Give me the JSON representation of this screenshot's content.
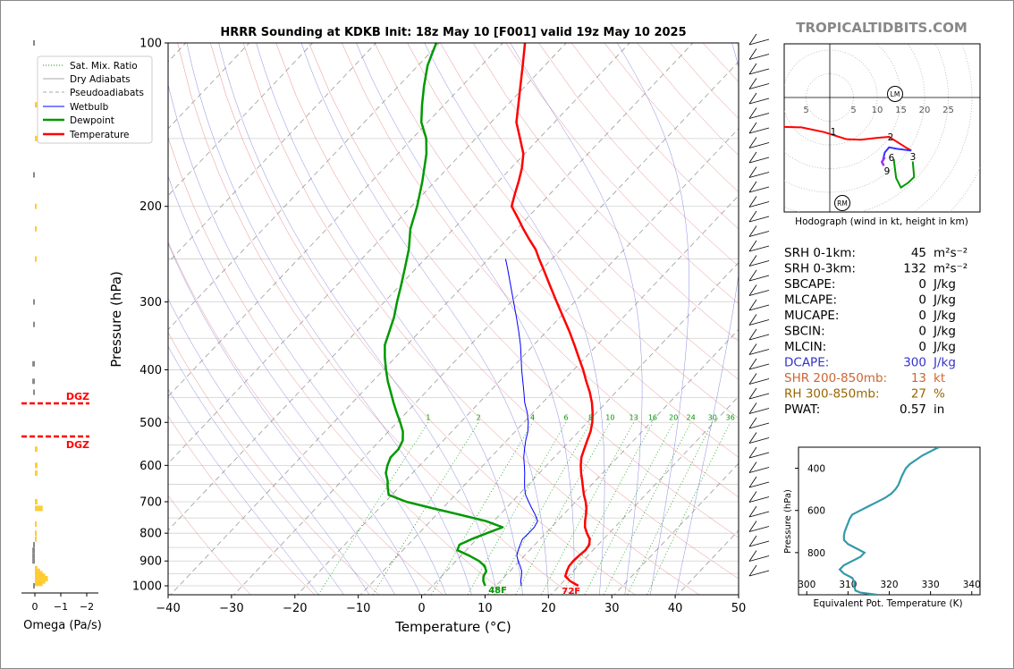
{
  "title": "HRRR Sounding at KDKB Init: 18z May 10 [F001] valid 19z May 10 2025",
  "brand": "TROPICALTIDBITS.COM",
  "colors": {
    "temperature": "#ff0000",
    "dewpoint": "#009900",
    "wetbulb": "#0000ff",
    "dcape": "#3333cc",
    "shr": "#cc6633",
    "rh": "#996600",
    "theta_e": "#3399aa",
    "omega_pos": "#ffcc33",
    "omega_neg": "#888888",
    "brand": "#888888",
    "dgz": "#ff0000"
  },
  "chart_data": [
    {
      "type": "line",
      "name": "skew-t",
      "title": "HRRR Sounding at KDKB Init: 18z May 10 [F001] valid 19z May 10 2025",
      "xlabel": "Temperature (°C)",
      "ylabel": "Pressure (hPa)",
      "xlim": [
        -40,
        50
      ],
      "ylim": [
        1050,
        100
      ],
      "y_scale": "log",
      "x_ticks": [
        "−40",
        "−30",
        "−20",
        "−10",
        "0",
        "10",
        "20",
        "30",
        "40",
        "50"
      ],
      "y_ticks": [
        "100",
        "200",
        "300",
        "400",
        "500",
        "600",
        "700",
        "800",
        "900",
        "1000"
      ],
      "legend": {
        "position": "top-left",
        "entries": [
          "Sat. Mix. Ratio",
          "Dry Adiabats",
          "Pseudoadiabats",
          "Wetbulb",
          "Dewpoint",
          "Temperature"
        ]
      },
      "mixing_ratio_labels": [
        "1",
        "2",
        "4",
        "6",
        "8",
        "10",
        "13",
        "16",
        "20",
        "24",
        "30",
        "36"
      ],
      "surface_labels": {
        "temperature": "72F",
        "dewpoint": "48F"
      },
      "series": [
        {
          "name": "Temperature",
          "points": [
            [
              1000,
              23.0
            ],
            [
              980,
              21.0
            ],
            [
              960,
              19.5
            ],
            [
              940,
              19.0
            ],
            [
              920,
              18.6
            ],
            [
              900,
              18.5
            ],
            [
              880,
              18.6
            ],
            [
              860,
              18.8
            ],
            [
              840,
              18.6
            ],
            [
              820,
              17.8
            ],
            [
              800,
              16.5
            ],
            [
              780,
              15.3
            ],
            [
              760,
              14.4
            ],
            [
              740,
              13.6
            ],
            [
              720,
              12.7
            ],
            [
              700,
              11.6
            ],
            [
              680,
              10.3
            ],
            [
              660,
              9.1
            ],
            [
              640,
              7.9
            ],
            [
              620,
              6.6
            ],
            [
              600,
              5.4
            ],
            [
              580,
              4.3
            ],
            [
              560,
              3.5
            ],
            [
              540,
              2.7
            ],
            [
              520,
              1.9
            ],
            [
              500,
              0.8
            ],
            [
              480,
              -0.6
            ],
            [
              460,
              -2.2
            ],
            [
              440,
              -4.1
            ],
            [
              420,
              -6.3
            ],
            [
              400,
              -8.5
            ],
            [
              380,
              -11.0
            ],
            [
              360,
              -13.6
            ],
            [
              340,
              -16.4
            ],
            [
              320,
              -19.5
            ],
            [
              300,
              -22.8
            ],
            [
              280,
              -26.3
            ],
            [
              260,
              -30.0
            ],
            [
              250,
              -32.0
            ],
            [
              240,
              -34.0
            ],
            [
              230,
              -36.5
            ],
            [
              220,
              -39.0
            ],
            [
              210,
              -41.5
            ],
            [
              200,
              -44.2
            ],
            [
              190,
              -45.5
            ],
            [
              180,
              -46.8
            ],
            [
              170,
              -48.3
            ],
            [
              160,
              -50.2
            ],
            [
              150,
              -53.0
            ],
            [
              140,
              -56.0
            ],
            [
              130,
              -58.3
            ],
            [
              120,
              -60.8
            ],
            [
              110,
              -63.5
            ],
            [
              100,
              -66.5
            ]
          ]
        },
        {
          "name": "Dewpoint",
          "points": [
            [
              1000,
              8.3
            ],
            [
              980,
              7.3
            ],
            [
              960,
              6.6
            ],
            [
              940,
              6.3
            ],
            [
              920,
              5.3
            ],
            [
              900,
              3.6
            ],
            [
              880,
              1.3
            ],
            [
              860,
              -1.4
            ],
            [
              840,
              -1.9
            ],
            [
              820,
              -0.8
            ],
            [
              800,
              0.7
            ],
            [
              780,
              2.3
            ],
            [
              760,
              -1.2
            ],
            [
              740,
              -6.2
            ],
            [
              720,
              -11.5
            ],
            [
              700,
              -16.7
            ],
            [
              680,
              -20.5
            ],
            [
              660,
              -21.7
            ],
            [
              640,
              -22.8
            ],
            [
              620,
              -24.2
            ],
            [
              600,
              -25.1
            ],
            [
              580,
              -25.8
            ],
            [
              560,
              -25.8
            ],
            [
              540,
              -26.4
            ],
            [
              520,
              -27.7
            ],
            [
              500,
              -29.5
            ],
            [
              480,
              -31.5
            ],
            [
              460,
              -33.5
            ],
            [
              440,
              -35.5
            ],
            [
              420,
              -37.6
            ],
            [
              400,
              -39.6
            ],
            [
              380,
              -41.6
            ],
            [
              360,
              -43.5
            ],
            [
              340,
              -44.8
            ],
            [
              320,
              -46.2
            ],
            [
              300,
              -48.0
            ],
            [
              280,
              -49.8
            ],
            [
              260,
              -51.8
            ],
            [
              240,
              -54.0
            ],
            [
              220,
              -56.8
            ],
            [
              200,
              -59.1
            ],
            [
              180,
              -62.0
            ],
            [
              160,
              -65.5
            ],
            [
              150,
              -67.8
            ],
            [
              140,
              -71.0
            ],
            [
              130,
              -73.5
            ],
            [
              120,
              -76.0
            ],
            [
              110,
              -78.5
            ],
            [
              100,
              -80.5
            ]
          ]
        },
        {
          "name": "Wetbulb",
          "points": [
            [
              1000,
              14.0
            ],
            [
              980,
              13.2
            ],
            [
              960,
              12.6
            ],
            [
              940,
              11.9
            ],
            [
              920,
              10.9
            ],
            [
              900,
              9.8
            ],
            [
              880,
              8.8
            ],
            [
              860,
              8.2
            ],
            [
              840,
              7.7
            ],
            [
              820,
              7.2
            ],
            [
              800,
              7.3
            ],
            [
              780,
              7.3
            ],
            [
              760,
              6.9
            ],
            [
              740,
              5.6
            ],
            [
              720,
              4.1
            ],
            [
              700,
              2.6
            ],
            [
              680,
              1.1
            ],
            [
              660,
              -0.1
            ],
            [
              640,
              -1.2
            ],
            [
              620,
              -2.3
            ],
            [
              600,
              -3.5
            ],
            [
              580,
              -4.8
            ],
            [
              560,
              -5.9
            ],
            [
              540,
              -7.0
            ],
            [
              520,
              -8.0
            ],
            [
              500,
              -9.3
            ],
            [
              480,
              -10.9
            ],
            [
              460,
              -12.8
            ],
            [
              440,
              -14.5
            ],
            [
              420,
              -16.3
            ],
            [
              400,
              -18.2
            ],
            [
              380,
              -20.1
            ],
            [
              360,
              -22.1
            ],
            [
              340,
              -24.4
            ],
            [
              320,
              -26.9
            ],
            [
              300,
              -29.6
            ],
            [
              280,
              -32.5
            ],
            [
              260,
              -35.6
            ],
            [
              250,
              -37.3
            ]
          ]
        }
      ]
    },
    {
      "type": "line",
      "name": "hodograph",
      "xlabel": "Hodograph (wind in kt, height in km)",
      "ring_labels": [
        "5",
        "5",
        "10",
        "15",
        "20",
        "25"
      ],
      "markers": [
        "LM",
        "RM"
      ],
      "height_labels": [
        "1",
        "2",
        "3",
        "6",
        "9"
      ]
    },
    {
      "type": "line",
      "name": "theta-e",
      "xlabel": "Equivalent Pot. Temperature (K)",
      "ylabel": "Pressure (hPa)",
      "xlim": [
        298,
        342
      ],
      "ylim": [
        1000,
        300
      ],
      "x_ticks": [
        "300",
        "310",
        "320",
        "330",
        "340"
      ],
      "y_ticks": [
        "400",
        "600",
        "800"
      ],
      "points": [
        [
          1000,
          317.0
        ],
        [
          990,
          313.0
        ],
        [
          980,
          311.8
        ],
        [
          960,
          311.5
        ],
        [
          940,
          311.6
        ],
        [
          920,
          311.0
        ],
        [
          900,
          309.0
        ],
        [
          880,
          308.0
        ],
        [
          860,
          309.0
        ],
        [
          840,
          311.0
        ],
        [
          820,
          313.0
        ],
        [
          800,
          314.0
        ],
        [
          780,
          312.0
        ],
        [
          760,
          310.0
        ],
        [
          740,
          309.0
        ],
        [
          720,
          309.0
        ],
        [
          700,
          309.2
        ],
        [
          680,
          309.6
        ],
        [
          660,
          310.0
        ],
        [
          640,
          310.4
        ],
        [
          620,
          311.0
        ],
        [
          600,
          313.0
        ],
        [
          580,
          315.0
        ],
        [
          560,
          317.0
        ],
        [
          540,
          319.0
        ],
        [
          520,
          320.5
        ],
        [
          500,
          321.5
        ],
        [
          480,
          322.2
        ],
        [
          460,
          322.6
        ],
        [
          440,
          323.0
        ],
        [
          420,
          323.5
        ],
        [
          400,
          324.0
        ],
        [
          380,
          325.0
        ],
        [
          360,
          326.5
        ],
        [
          340,
          328.0
        ],
        [
          320,
          330.0
        ],
        [
          300,
          332.0
        ]
      ]
    },
    {
      "type": "bar",
      "name": "omega",
      "xlabel": "Omega (Pa/s)",
      "x_ticks": [
        "0",
        "−1",
        "−2"
      ],
      "dgz_label": "DGZ"
    }
  ],
  "stats": [
    {
      "label": "SRH 0-1km:",
      "value": "45",
      "unit": "m²s⁻²",
      "color": "#000000"
    },
    {
      "label": "SRH 0-3km:",
      "value": "132",
      "unit": "m²s⁻²",
      "color": "#000000"
    },
    {
      "label": "SBCAPE:",
      "value": "0",
      "unit": "J/kg",
      "color": "#000000"
    },
    {
      "label": "MLCAPE:",
      "value": "0",
      "unit": "J/kg",
      "color": "#000000"
    },
    {
      "label": "MUCAPE:",
      "value": "0",
      "unit": "J/kg",
      "color": "#000000"
    },
    {
      "label": "SBCIN:",
      "value": "0",
      "unit": "J/kg",
      "color": "#000000"
    },
    {
      "label": "MLCIN:",
      "value": "0",
      "unit": "J/kg",
      "color": "#000000"
    },
    {
      "label": "DCAPE:",
      "value": "300",
      "unit": "J/kg",
      "color": "#3333cc"
    },
    {
      "label": "SHR 200-850mb:",
      "value": "13",
      "unit": "kt",
      "color": "#cc6633"
    },
    {
      "label": "RH 300-850mb:",
      "value": "27",
      "unit": "%",
      "color": "#996600"
    },
    {
      "label": "PWAT:",
      "value": "0.57",
      "unit": "in",
      "color": "#000000"
    }
  ]
}
